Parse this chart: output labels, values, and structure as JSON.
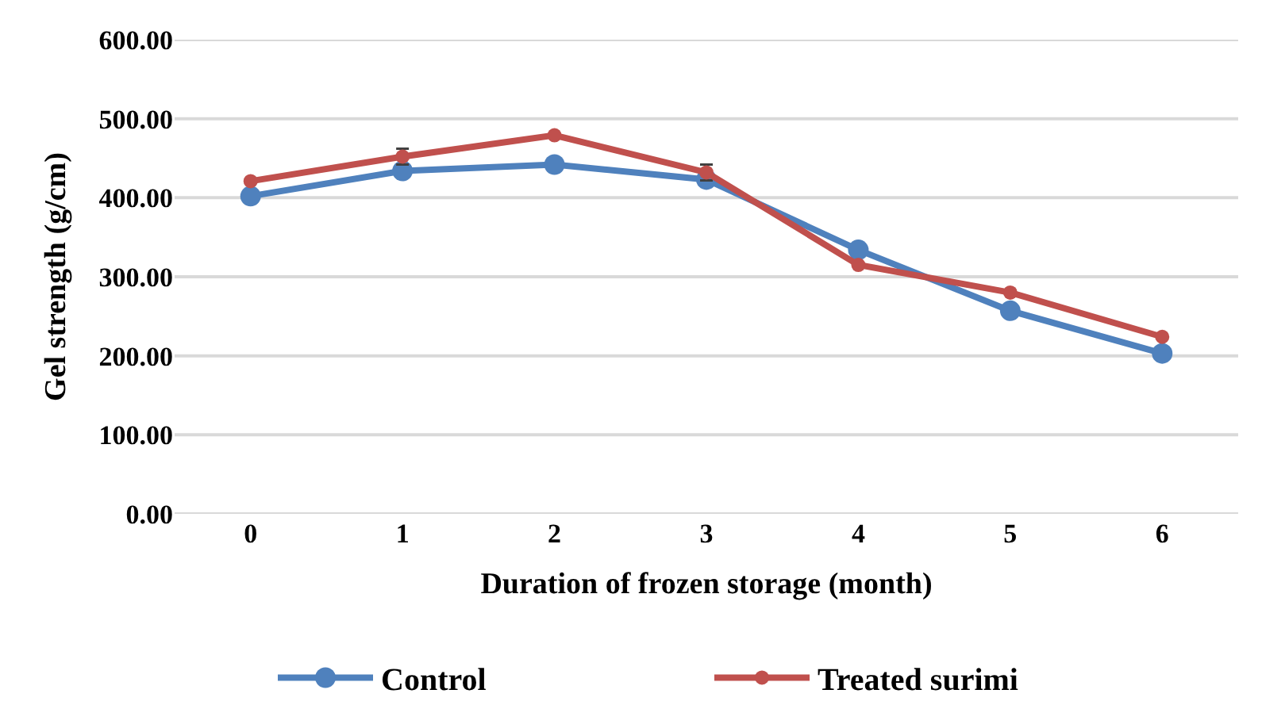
{
  "chart_data": {
    "type": "line",
    "xlabel": "Duration of frozen storage (month)",
    "ylabel": "Gel strength (g/cm)",
    "categories": [
      "0",
      "1",
      "2",
      "3",
      "4",
      "5",
      "6"
    ],
    "series": [
      {
        "name": "Control",
        "color": "#4f81bd",
        "values": [
          402,
          434,
          442,
          423,
          334,
          257,
          203
        ]
      },
      {
        "name": "Treated surimi",
        "color": "#c0504d",
        "values": [
          421,
          452,
          479,
          432,
          315,
          280,
          224
        ],
        "errors": [
          null,
          10,
          null,
          10,
          null,
          null,
          null
        ]
      }
    ],
    "ylim": [
      0,
      600
    ],
    "yticks": [
      {
        "value": 0,
        "label": "0.00"
      },
      {
        "value": 100,
        "label": "100.00"
      },
      {
        "value": 200,
        "label": "200.00"
      },
      {
        "value": 300,
        "label": "300.00"
      },
      {
        "value": 400,
        "label": "400.00"
      },
      {
        "value": 500,
        "label": "500.00"
      },
      {
        "value": 600,
        "label": "600.00"
      }
    ],
    "grid": "y",
    "legend": "bottom",
    "marker": "circle",
    "line_style": "solid"
  }
}
